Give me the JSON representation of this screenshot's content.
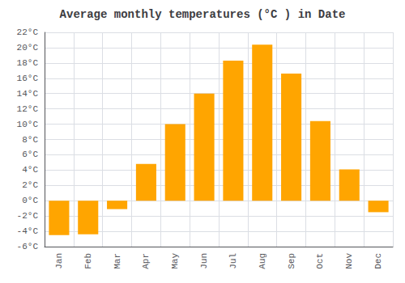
{
  "chart_data": {
    "type": "bar",
    "title": "Average monthly temperatures (°C ) in Date",
    "categories": [
      "Jan",
      "Feb",
      "Mar",
      "Apr",
      "May",
      "Jun",
      "Jul",
      "Aug",
      "Sep",
      "Oct",
      "Nov",
      "Dec"
    ],
    "values": [
      -4.5,
      -4.4,
      -1.1,
      4.8,
      10.0,
      14.0,
      18.3,
      20.4,
      16.6,
      10.4,
      4.1,
      -1.5
    ],
    "color": "#FFA500",
    "ylim": [
      -6,
      22
    ],
    "yticks": [
      {
        "value": -6,
        "label": "-6°C"
      },
      {
        "value": -4,
        "label": "-4°C"
      },
      {
        "value": -2,
        "label": "-2°C"
      },
      {
        "value": 0,
        "label": "0°C"
      },
      {
        "value": 2,
        "label": "2°C"
      },
      {
        "value": 4,
        "label": "4°C"
      },
      {
        "value": 6,
        "label": "6°C"
      },
      {
        "value": 8,
        "label": "8°C"
      },
      {
        "value": 10,
        "label": "10°C"
      },
      {
        "value": 12,
        "label": "12°C"
      },
      {
        "value": 14,
        "label": "14°C"
      },
      {
        "value": 16,
        "label": "16°C"
      },
      {
        "value": 18,
        "label": "18°C"
      },
      {
        "value": 20,
        "label": "20°C"
      },
      {
        "value": 22,
        "label": "22°C"
      }
    ],
    "grid": true
  }
}
